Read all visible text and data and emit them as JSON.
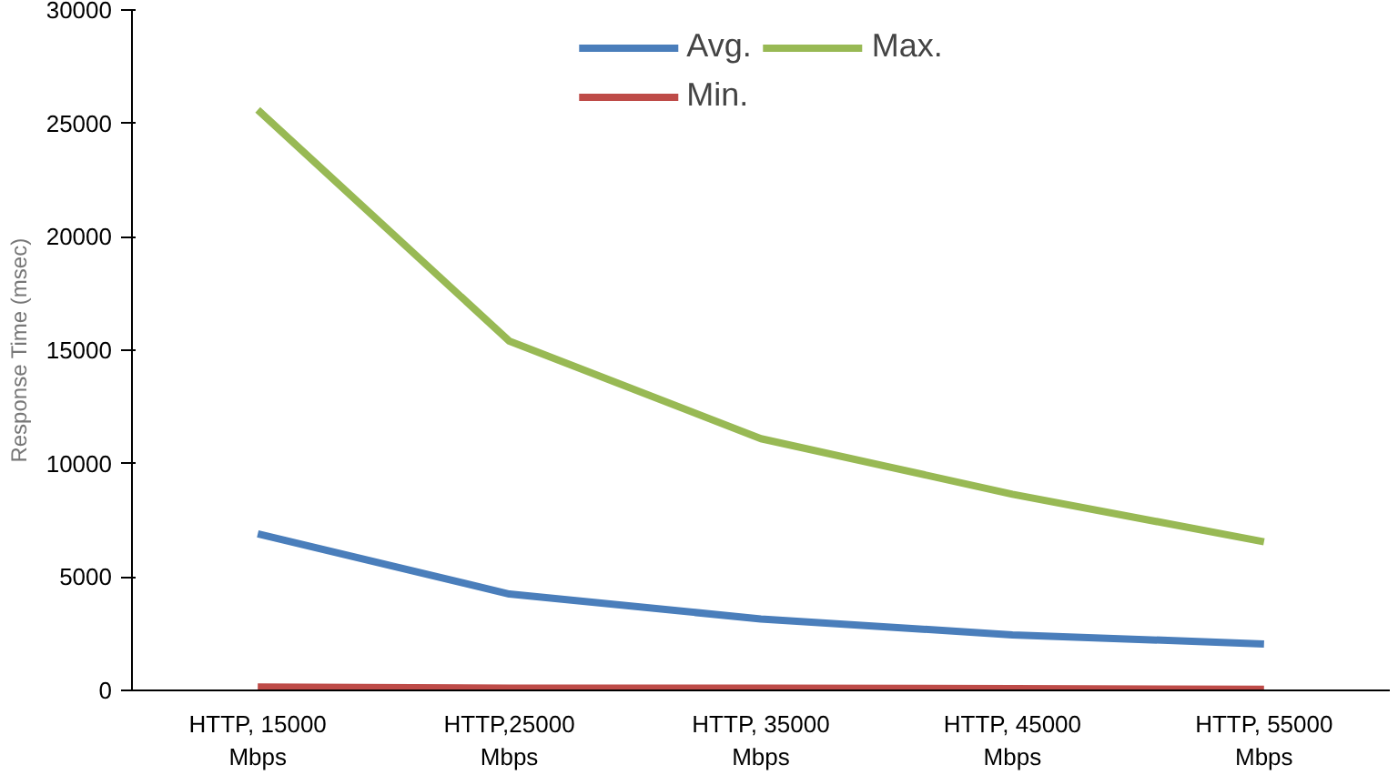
{
  "chart_data": {
    "type": "line",
    "ylabel": "Response Time (msec)",
    "categories": [
      "HTTP, 15000\nMbps",
      "HTTP,25000\nMbps",
      "HTTP, 35000\nMbps",
      "HTTP, 45000\nMbps",
      "HTTP, 55000\nMbps"
    ],
    "series": [
      {
        "name": "Avg.",
        "color": "#4a7ebb",
        "values": [
          6900,
          4250,
          3150,
          2450,
          2050
        ]
      },
      {
        "name": "Min.",
        "color": "#be4b48",
        "values": [
          150,
          100,
          100,
          80,
          50
        ]
      },
      {
        "name": "Max.",
        "color": "#98b954",
        "values": [
          25600,
          15400,
          11100,
          8650,
          6550
        ]
      }
    ],
    "ylim": [
      0,
      30000
    ],
    "yticks": [
      0,
      5000,
      10000,
      15000,
      20000,
      25000,
      30000
    ],
    "grid": false,
    "legend": "top",
    "marker": "none",
    "line_style": "solid"
  }
}
